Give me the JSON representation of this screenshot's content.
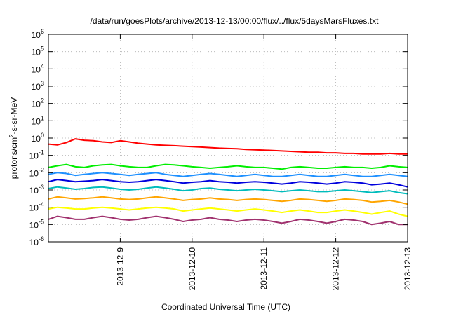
{
  "chart_data": {
    "type": "line",
    "title": "/data/run/goesPlots/archive/2013-12-13/00:00/flux/../flux/5daysMarsFluxes.txt",
    "xlabel": "Coordinated Universal Time (UTC)",
    "ylabel_parts": {
      "base": "protons/cm",
      "sup": "2",
      "rest": "-s-sr-MeV"
    },
    "y_scale": "log",
    "ylim": [
      1e-06,
      1000000.0
    ],
    "y_ticks": [
      {
        "value": 1e-06,
        "base": "10",
        "exp": "-6"
      },
      {
        "value": 1e-05,
        "base": "10",
        "exp": "-5"
      },
      {
        "value": 0.0001,
        "base": "10",
        "exp": "-4"
      },
      {
        "value": 0.001,
        "base": "10",
        "exp": "-3"
      },
      {
        "value": 0.01,
        "base": "10",
        "exp": "-2"
      },
      {
        "value": 0.1,
        "base": "10",
        "exp": "-1"
      },
      {
        "value": 1.0,
        "base": "10",
        "exp": "0"
      },
      {
        "value": 10.0,
        "base": "10",
        "exp": "1"
      },
      {
        "value": 100.0,
        "base": "10",
        "exp": "2"
      },
      {
        "value": 1000.0,
        "base": "10",
        "exp": "3"
      },
      {
        "value": 10000.0,
        "base": "10",
        "exp": "4"
      },
      {
        "value": 100000.0,
        "base": "10",
        "exp": "5"
      },
      {
        "value": 1000000.0,
        "base": "10",
        "exp": "6"
      }
    ],
    "xlim": [
      "2013-12-08T00:00",
      "2013-12-13T00:00"
    ],
    "x_ticks": [
      {
        "value": "2013-12-09T00:00",
        "label": "2013-12-9"
      },
      {
        "value": "2013-12-10T00:00",
        "label": "2013-12-10"
      },
      {
        "value": "2013-12-11T00:00",
        "label": "2013-12-11"
      },
      {
        "value": "2013-12-12T00:00",
        "label": "2013-12-12"
      },
      {
        "value": "2013-12-13T00:00",
        "label": "2013-12-13"
      }
    ],
    "grid": true,
    "sample_interval_hours": 3,
    "series": [
      {
        "color": "#ff0000",
        "start": 0.45,
        "end": 0.12,
        "dip": 0.55,
        "values": [
          0.45,
          0.4,
          0.55,
          0.9,
          0.75,
          0.7,
          0.6,
          0.55,
          0.7,
          0.6,
          0.5,
          0.45,
          0.4,
          0.38,
          0.36,
          0.34,
          0.32,
          0.3,
          0.28,
          0.26,
          0.25,
          0.24,
          0.22,
          0.21,
          0.2,
          0.19,
          0.18,
          0.17,
          0.16,
          0.15,
          0.15,
          0.14,
          0.14,
          0.13,
          0.13,
          0.12,
          0.12,
          0.12,
          0.13,
          0.12,
          0.12
        ]
      },
      {
        "color": "#00ee00",
        "start": 0.02,
        "end": 0.015,
        "dip": 0.45,
        "values": [
          0.02,
          0.025,
          0.03,
          0.022,
          0.02,
          0.025,
          0.028,
          0.03,
          0.025,
          0.022,
          0.02,
          0.02,
          0.025,
          0.03,
          0.028,
          0.025,
          0.022,
          0.02,
          0.018,
          0.02,
          0.022,
          0.025,
          0.022,
          0.02,
          0.02,
          0.018,
          0.016,
          0.02,
          0.022,
          0.02,
          0.018,
          0.018,
          0.02,
          0.022,
          0.02,
          0.02,
          0.018,
          0.02,
          0.025,
          0.022,
          0.02
        ]
      },
      {
        "color": "#1e90ff",
        "start": 0.008,
        "end": 0.005,
        "dip": 0.4,
        "values": [
          0.008,
          0.01,
          0.009,
          0.007,
          0.008,
          0.009,
          0.01,
          0.009,
          0.008,
          0.007,
          0.008,
          0.009,
          0.01,
          0.008,
          0.007,
          0.006,
          0.007,
          0.008,
          0.009,
          0.008,
          0.007,
          0.006,
          0.007,
          0.008,
          0.007,
          0.006,
          0.006,
          0.007,
          0.008,
          0.007,
          0.006,
          0.006,
          0.007,
          0.008,
          0.007,
          0.006,
          0.006,
          0.007,
          0.008,
          0.007,
          0.006
        ]
      },
      {
        "color": "#0000dd",
        "start": 0.003,
        "end": 0.0015,
        "dip": 0.3,
        "values": [
          0.003,
          0.004,
          0.0035,
          0.003,
          0.0032,
          0.0035,
          0.004,
          0.0035,
          0.003,
          0.0028,
          0.003,
          0.0035,
          0.004,
          0.0035,
          0.003,
          0.0025,
          0.0028,
          0.003,
          0.0035,
          0.003,
          0.0028,
          0.0025,
          0.0028,
          0.003,
          0.0028,
          0.0025,
          0.0022,
          0.0025,
          0.003,
          0.0028,
          0.0025,
          0.0022,
          0.0025,
          0.003,
          0.0028,
          0.0025,
          0.002,
          0.0022,
          0.0025,
          0.002,
          0.0015
        ]
      },
      {
        "color": "#00bcbc",
        "start": 0.0012,
        "end": 0.0006,
        "dip": 0.25,
        "values": [
          0.0012,
          0.0015,
          0.0013,
          0.0011,
          0.0012,
          0.0014,
          0.0015,
          0.0013,
          0.0011,
          0.001,
          0.0011,
          0.0013,
          0.0015,
          0.0013,
          0.0011,
          0.0009,
          0.001,
          0.0012,
          0.0013,
          0.0011,
          0.001,
          0.0009,
          0.001,
          0.0011,
          0.001,
          0.0009,
          0.0008,
          0.0009,
          0.001,
          0.0009,
          0.0008,
          0.0008,
          0.0009,
          0.001,
          0.0009,
          0.0008,
          0.0007,
          0.0008,
          0.0009,
          0.0007,
          0.0006
        ]
      },
      {
        "color": "#ffa500",
        "start": 0.0003,
        "end": 0.00015,
        "dip": 0.2,
        "values": [
          0.0003,
          0.0004,
          0.00035,
          0.0003,
          0.00032,
          0.00035,
          0.0004,
          0.00035,
          0.0003,
          0.00028,
          0.0003,
          0.00035,
          0.0004,
          0.00035,
          0.0003,
          0.00025,
          0.00028,
          0.0003,
          0.00035,
          0.0003,
          0.00028,
          0.00025,
          0.00028,
          0.0003,
          0.00028,
          0.00025,
          0.00022,
          0.00025,
          0.0003,
          0.00028,
          0.00025,
          0.00022,
          0.00025,
          0.0003,
          0.00028,
          0.00025,
          0.0002,
          0.00022,
          0.00025,
          0.0002,
          0.00015
        ]
      },
      {
        "color": "#ffff00",
        "start": 8e-05,
        "end": 3e-05,
        "dip": 0.15,
        "values": [
          8e-05,
          0.0001,
          9e-05,
          8e-05,
          8e-05,
          9e-05,
          0.0001,
          9e-05,
          8e-05,
          7e-05,
          8e-05,
          9e-05,
          0.0001,
          9e-05,
          8e-05,
          6e-05,
          7e-05,
          8e-05,
          9e-05,
          8e-05,
          7e-05,
          6e-05,
          7e-05,
          8e-05,
          7e-05,
          6e-05,
          5e-05,
          6e-05,
          7e-05,
          6e-05,
          5e-05,
          5e-05,
          6e-05,
          7e-05,
          6e-05,
          5e-05,
          4e-05,
          5e-05,
          6e-05,
          4e-05,
          3e-05
        ]
      },
      {
        "color": "#a0316e",
        "start": 2e-05,
        "end": 1e-05,
        "dip": 0.1,
        "values": [
          2e-05,
          3e-05,
          2.5e-05,
          2e-05,
          2e-05,
          2.5e-05,
          3e-05,
          2.5e-05,
          2e-05,
          1.8e-05,
          2e-05,
          2.5e-05,
          3e-05,
          2.5e-05,
          2e-05,
          1.5e-05,
          1.8e-05,
          2e-05,
          2.5e-05,
          2e-05,
          1.8e-05,
          1.5e-05,
          1.8e-05,
          2e-05,
          1.8e-05,
          1.5e-05,
          1.2e-05,
          1.5e-05,
          2e-05,
          1.8e-05,
          1.5e-05,
          1.2e-05,
          1.5e-05,
          2e-05,
          1.8e-05,
          1.5e-05,
          1e-05,
          1.2e-05,
          1.5e-05,
          1e-05,
          1e-05
        ]
      }
    ]
  }
}
